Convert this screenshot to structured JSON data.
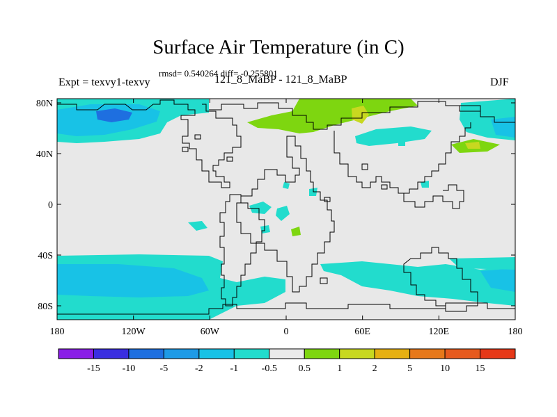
{
  "title": "Surface Air Temperature (in C)",
  "stats": "rmsd= 0.540264 diff= -0.255801",
  "expt": "Expt = texvy1-texvy",
  "period": "121_8_MaBP - 121_8_MaBP",
  "season": "DJF",
  "x_ticks": [
    "180",
    "120W",
    "60W",
    "0",
    "60E",
    "120E",
    "180"
  ],
  "y_ticks": [
    "80N",
    "40N",
    "0",
    "40S",
    "80S"
  ],
  "colorbar": {
    "labels": [
      "-15",
      "-10",
      "-5",
      "-2",
      "-1",
      "-0.5",
      "0.5",
      "1",
      "2",
      "5",
      "10",
      "15"
    ],
    "colors": [
      "#8a1ee6",
      "#3a2ee0",
      "#1e6fe0",
      "#1e9ae6",
      "#18c2e6",
      "#22dccd",
      "#ebebeb",
      "#7ed610",
      "#c8d820",
      "#e6b012",
      "#e6781a",
      "#e65a1e",
      "#e63818"
    ]
  },
  "field_colors": {
    "background": "#e8e8e8",
    "minus2": "#18c2e6",
    "minus1": "#22dccd",
    "minus5": "#1e6fe0",
    "plus1": "#7ed610",
    "plus2": "#c8d820"
  }
}
